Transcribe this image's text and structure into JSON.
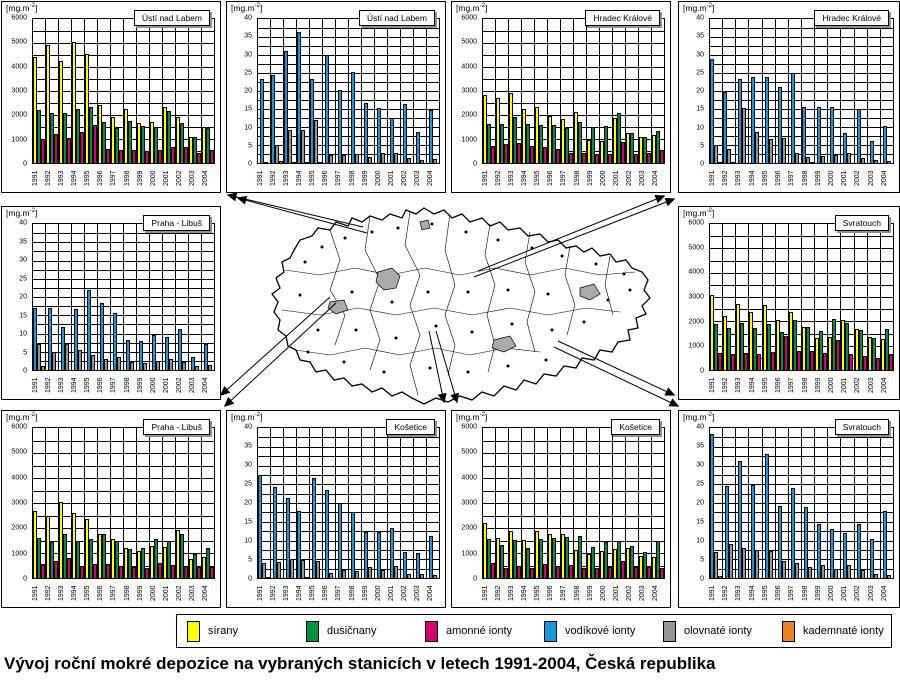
{
  "main": {
    "title": "Vývoj roční mokré depozice na vybraných stanicích  v letech 1991-2004, Česká republika"
  },
  "unit": {
    "prefix": "[mg.m",
    "sup": "-2",
    "suffix": "]"
  },
  "colors": {
    "sirany": "#FFFF00",
    "dusicnany": "#009140",
    "amonne": "#D60070",
    "vodikove": "#1698DC",
    "olovnate": "#969696",
    "kademnate": "#E8821E"
  },
  "legend": {
    "items": [
      {
        "label": "sírany",
        "color_key": "sirany"
      },
      {
        "label": "dusičnany",
        "color_key": "dusicnany"
      },
      {
        "label": "amonné ionty",
        "color_key": "amonne"
      },
      {
        "label": "vodíkové ionty",
        "color_key": "vodikove"
      },
      {
        "label": "olovnaté ionty",
        "color_key": "olovnate"
      },
      {
        "label": "kademnaté ionty",
        "color_key": "kademnate"
      }
    ]
  },
  "years": [
    "1991",
    "1992",
    "1993",
    "1994",
    "1995",
    "1996",
    "1997",
    "1998",
    "1999",
    "2000",
    "2001",
    "2002",
    "2003",
    "2004"
  ],
  "chart_data": [
    {
      "type": "bar",
      "station": "Ústí nad Labem",
      "ylabel": "mg.m-2",
      "ylim": [
        0,
        6000
      ],
      "ytick": 1000,
      "yminor": 500,
      "series": [
        {
          "name": "sírany",
          "color_key": "sirany",
          "values": [
            4400,
            4900,
            4250,
            5050,
            4550,
            2400,
            1900,
            2250,
            1650,
            1700,
            2350,
            1900,
            1100,
            1500
          ]
        },
        {
          "name": "dusičnany",
          "color_key": "dusicnany",
          "values": [
            2200,
            2100,
            2100,
            2250,
            2350,
            1700,
            1450,
            1750,
            1550,
            1500,
            2150,
            1650,
            1100,
            1450
          ]
        },
        {
          "name": "amonné ionty",
          "color_key": "amonne",
          "values": [
            1000,
            1200,
            1050,
            1280,
            1580,
            600,
            550,
            550,
            480,
            560,
            680,
            680,
            420,
            560
          ]
        }
      ]
    },
    {
      "type": "bar",
      "station": "Ústí nad Labem",
      "ylabel": "mg.m-2",
      "ylim": [
        0,
        40
      ],
      "ytick": 5,
      "yminor": 2.5,
      "series": [
        {
          "name": "vodíkové ionty",
          "color_key": "vodikove",
          "values": [
            23.2,
            24.5,
            31,
            36.5,
            23.2,
            30,
            20.2,
            25.2,
            16.6,
            15.2,
            12.6,
            16.3,
            8.7,
            14.8
          ]
        },
        {
          "name": "olovnaté ionty",
          "color_key": "olovnate",
          "values": [
            0.3,
            5,
            9.3,
            9.3,
            12,
            2.3,
            2.1,
            2.6,
            1.8,
            2.9,
            2.9,
            1.3,
            0.7,
            1
          ]
        },
        {
          "name": "kademnaté ionty",
          "color_key": "kademnate",
          "values": [
            0,
            0.5,
            0.2,
            0.2,
            0.2,
            0,
            0,
            0,
            0,
            0,
            0,
            0,
            0,
            0
          ]
        }
      ]
    },
    {
      "type": "bar",
      "station": "Hradec Králové",
      "ylabel": "mg.m-2",
      "ylim": [
        0,
        6000
      ],
      "ytick": 1000,
      "yminor": 500,
      "series": [
        {
          "name": "sírany",
          "color_key": "sirany",
          "values": [
            2850,
            2720,
            2920,
            2250,
            2330,
            1970,
            1820,
            2120,
            950,
            900,
            1880,
            1270,
            1080,
            1150
          ]
        },
        {
          "name": "dusičnany",
          "color_key": "dusicnany",
          "values": [
            1620,
            1620,
            1900,
            1620,
            1580,
            1580,
            1470,
            1700,
            1500,
            1550,
            2080,
            1270,
            1100,
            1350
          ]
        },
        {
          "name": "amonné ionty",
          "color_key": "amonne",
          "values": [
            700,
            780,
            830,
            700,
            660,
            600,
            420,
            430,
            380,
            380,
            870,
            380,
            430,
            560
          ]
        }
      ]
    },
    {
      "type": "bar",
      "station": "Hradec Králové",
      "ylabel": "mg.m-2",
      "ylim": [
        0,
        40
      ],
      "ytick": 5,
      "yminor": 2.5,
      "series": [
        {
          "name": "vodíkové ionty",
          "color_key": "vodikove",
          "values": [
            29,
            19.8,
            23.2,
            24,
            24,
            21,
            25,
            15.5,
            15.5,
            15.5,
            8.2,
            14.9,
            6,
            10.3
          ]
        },
        {
          "name": "olovnaté ionty",
          "color_key": "olovnate",
          "values": [
            5,
            4,
            15.3,
            8.7,
            6.6,
            6.9,
            2.9,
            1.8,
            1.9,
            2.3,
            2.9,
            1.3,
            0.8,
            0.5
          ]
        },
        {
          "name": "kademnaté ionty",
          "color_key": "kademnate",
          "values": [
            0.3,
            0.3,
            0,
            0,
            0,
            0,
            0,
            0.3,
            0,
            0,
            0,
            0,
            0,
            0
          ]
        }
      ]
    },
    {
      "type": "bar",
      "station": "Praha - Libuš",
      "ylabel": "mg.m-2",
      "ylim": [
        0,
        40
      ],
      "ytick": 5,
      "yminor": 2.5,
      "series": [
        {
          "name": "vodíkové ionty",
          "color_key": "vodikove",
          "values": [
            17,
            17,
            11.9,
            16.8,
            21.8,
            18.4,
            15.5,
            8.2,
            7.9,
            9.5,
            9,
            11.3,
            3.7,
            7.2
          ]
        },
        {
          "name": "olovnaté ionty",
          "color_key": "olovnate",
          "values": [
            7.2,
            4.9,
            7.2,
            5.4,
            4,
            2.9,
            3.5,
            2.1,
            1.9,
            2.6,
            3,
            2.1,
            1,
            1.3
          ]
        },
        {
          "name": "kademnaté ionty",
          "color_key": "kademnate",
          "values": [
            1.2,
            0,
            0,
            0,
            0,
            0,
            0,
            0,
            0,
            0,
            0,
            0,
            0,
            0
          ]
        }
      ]
    },
    {
      "type": "bar",
      "station": "Svratouch",
      "ylabel": "mg.m-2",
      "ylim": [
        0,
        6000
      ],
      "ytick": 1000,
      "yminor": 500,
      "series": [
        {
          "name": "sírany",
          "color_key": "sirany",
          "values": [
            3100,
            2200,
            2720,
            2400,
            2680,
            2050,
            2400,
            1780,
            1330,
            1350,
            2050,
            1700,
            1350,
            1280
          ]
        },
        {
          "name": "dusičnany",
          "color_key": "dusicnany",
          "values": [
            1880,
            1730,
            1930,
            1730,
            1880,
            1550,
            2050,
            1780,
            1620,
            2080,
            1930,
            1650,
            1330,
            1680
          ]
        },
        {
          "name": "amonné ionty",
          "color_key": "amonne",
          "values": [
            700,
            650,
            700,
            650,
            730,
            1380,
            780,
            780,
            700,
            1250,
            650,
            580,
            500,
            650
          ]
        }
      ]
    },
    {
      "type": "bar",
      "station": "Praha - Libuš",
      "ylabel": "mg.m-2",
      "ylim": [
        0,
        6000
      ],
      "ytick": 1000,
      "yminor": 500,
      "series": [
        {
          "name": "sírany",
          "color_key": "sirany",
          "values": [
            2680,
            2500,
            3050,
            2600,
            2380,
            1780,
            1550,
            1220,
            1080,
            1300,
            1250,
            1930,
            750,
            850
          ]
        },
        {
          "name": "dusičnany",
          "color_key": "dusicnany",
          "values": [
            1620,
            1430,
            1780,
            1470,
            1580,
            1750,
            1470,
            1150,
            1200,
            1580,
            1500,
            1780,
            950,
            1220
          ]
        },
        {
          "name": "amonné ionty",
          "color_key": "amonne",
          "values": [
            580,
            680,
            800,
            470,
            580,
            580,
            500,
            430,
            400,
            600,
            520,
            500,
            430,
            430
          ]
        }
      ]
    },
    {
      "type": "bar",
      "station": "Košetice",
      "ylabel": "mg.m-2",
      "ylim": [
        0,
        40
      ],
      "ytick": 5,
      "yminor": 2.5,
      "series": [
        {
          "name": "vodíkové ionty",
          "color_key": "vodikove",
          "values": [
            27.5,
            24.2,
            21.3,
            17.8,
            26.8,
            23.4,
            20,
            17.5,
            12.4,
            12.4,
            13.4,
            6.9,
            6.6,
            11.1
          ]
        },
        {
          "name": "olovnaté ionty",
          "color_key": "olovnate",
          "values": [
            4,
            4.3,
            5,
            4.9,
            4.6,
            1.4,
            2.2,
            1.9,
            3,
            2.2,
            3.2,
            1,
            1.1,
            0.8
          ]
        },
        {
          "name": "kademnaté ionty",
          "color_key": "kademnate",
          "values": [
            0.3,
            0,
            0,
            0.3,
            0,
            0,
            0,
            0,
            0,
            0,
            0,
            0,
            0,
            0
          ]
        }
      ]
    },
    {
      "type": "bar",
      "station": "Košetice",
      "ylabel": "mg.m-2",
      "ylim": [
        0,
        6000
      ],
      "ytick": 1000,
      "yminor": 500,
      "series": [
        {
          "name": "sírany",
          "color_key": "sirany",
          "values": [
            2220,
            1600,
            1900,
            1520,
            1900,
            1780,
            1750,
            1120,
            950,
            1080,
            1150,
            1200,
            880,
            850
          ]
        },
        {
          "name": "dusičnany",
          "color_key": "dusicnany",
          "values": [
            1580,
            1320,
            1520,
            1200,
            1550,
            1600,
            1630,
            1700,
            1230,
            1430,
            1480,
            1300,
            1050,
            1480
          ]
        },
        {
          "name": "amonné ionty",
          "color_key": "amonne",
          "values": [
            600,
            400,
            480,
            400,
            560,
            470,
            520,
            400,
            400,
            430,
            680,
            430,
            430,
            400
          ]
        }
      ]
    },
    {
      "type": "bar",
      "station": "Svratouch",
      "ylabel": "mg.m-2",
      "ylim": [
        0,
        40
      ],
      "ytick": 5,
      "yminor": 2.5,
      "series": [
        {
          "name": "vodíkové ionty",
          "color_key": "vodikove",
          "values": [
            38.5,
            24.5,
            31.2,
            24.8,
            33,
            19.2,
            24,
            19,
            14.5,
            13,
            11.9,
            14.3,
            10.3,
            17.8
          ]
        },
        {
          "name": "olovnaté ionty",
          "color_key": "olovnate",
          "values": [
            7,
            9,
            8,
            7.5,
            7.2,
            4.5,
            4,
            3,
            3.5,
            2.4,
            3.5,
            2.2,
            1.1,
            0.9
          ]
        },
        {
          "name": "kademnaté ionty",
          "color_key": "kademnate",
          "values": [
            0.6,
            0,
            0,
            0,
            0,
            0,
            0,
            0,
            0,
            0,
            0,
            0,
            0,
            0
          ]
        }
      ]
    }
  ]
}
